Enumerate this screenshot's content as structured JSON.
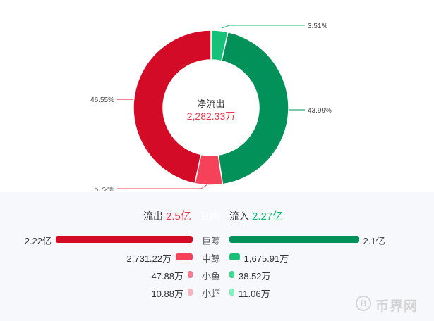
{
  "chart_data": {
    "type": "pie",
    "donut": true,
    "center": {
      "title": "净流出",
      "value": "2,282.33万"
    },
    "slices": [
      {
        "label": "3.51%",
        "value": 3.51,
        "color": "#16c079"
      },
      {
        "label": "43.99%",
        "value": 43.99,
        "color": "#029158"
      },
      {
        "label": "5.72%",
        "value": 5.72,
        "color": "#f5425a"
      },
      {
        "label": "46.55%",
        "value": 46.55,
        "color": "#d30b27"
      }
    ]
  },
  "summary": {
    "outflow_label": "流出",
    "outflow_value": "2.5亿",
    "middle_text": "日内",
    "inflow_label": "流入",
    "inflow_value": "2.27亿"
  },
  "rows": [
    {
      "name": "巨鲸",
      "out_text": "2.22亿",
      "out_value": 22200,
      "in_text": "2.1亿",
      "in_value": 21000,
      "out_color": "#d30b27",
      "in_color": "#029158"
    },
    {
      "name": "中鲸",
      "out_text": "2,731.22万",
      "out_value": 2731.22,
      "in_text": "1,675.91万",
      "in_value": 1675.91,
      "out_color": "#f5425a",
      "in_color": "#16c079"
    },
    {
      "name": "小鱼",
      "out_text": "47.88万",
      "out_value": 47.88,
      "in_text": "38.52万",
      "in_value": 38.52,
      "out_color": "#f27b8d",
      "in_color": "#3fd992"
    },
    {
      "name": "小虾",
      "out_text": "10.88万",
      "out_value": 10.88,
      "in_text": "11.06万",
      "in_value": 11.06,
      "out_color": "#f8b3bd",
      "in_color": "#7ef0bb"
    }
  ],
  "watermark": {
    "symbol": "B",
    "text": "币界网"
  }
}
